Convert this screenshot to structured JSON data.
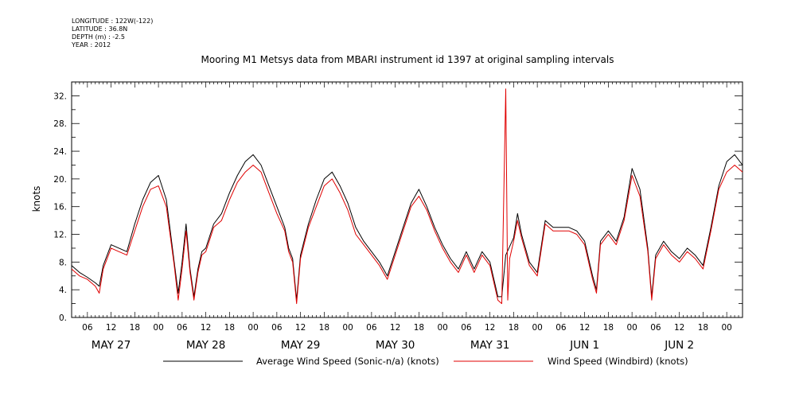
{
  "meta": {
    "longitude": "LONGITUDE : 122W(-122)",
    "latitude": "LATITUDE : 36.8N",
    "depth": "DEPTH (m) : -2.5",
    "year": "YEAR : 2012"
  },
  "colors": {
    "series1": "#000000",
    "series2": "#e00000"
  },
  "chart_data": {
    "type": "line",
    "title": "Mooring M1 Metsys data from MBARI instrument id 1397 at original sampling intervals",
    "ylabel": "knots",
    "xlabel": "",
    "ylim": [
      0,
      34
    ],
    "yticks": [
      0,
      4,
      8,
      12,
      16,
      20,
      24,
      28,
      32
    ],
    "ytick_labels": [
      "0.",
      "4.",
      "8.",
      "12.",
      "16.",
      "20.",
      "24.",
      "28.",
      "32."
    ],
    "x_unit": "hours since 2012-05-26 00:00",
    "xlim": [
      2,
      172
    ],
    "hour_ticks": [
      6,
      12,
      18,
      24,
      30,
      36,
      42,
      48,
      54,
      60,
      66,
      72,
      78,
      84,
      90,
      96,
      102,
      108,
      114,
      120,
      126,
      132,
      138,
      144,
      150,
      156,
      162,
      168
    ],
    "hour_tick_labels": [
      "06",
      "12",
      "18",
      "00",
      "06",
      "12",
      "18",
      "00",
      "06",
      "12",
      "18",
      "00",
      "06",
      "12",
      "18",
      "00",
      "06",
      "12",
      "18",
      "00",
      "06",
      "12",
      "18",
      "00",
      "06",
      "12",
      "18",
      "00"
    ],
    "day_labels": [
      {
        "x": 12,
        "label": "MAY 27"
      },
      {
        "x": 36,
        "label": "MAY 28"
      },
      {
        "x": 60,
        "label": "MAY 29"
      },
      {
        "x": 84,
        "label": "MAY 30"
      },
      {
        "x": 108,
        "label": "MAY 31"
      },
      {
        "x": 132,
        "label": "JUN  1"
      },
      {
        "x": 156,
        "label": "JUN  2"
      }
    ],
    "series": [
      {
        "name": "Average Wind Speed (Sonic-n/a) (knots)",
        "x": [
          2,
          4,
          6,
          8,
          9,
          10,
          12,
          14,
          16,
          18,
          20,
          22,
          24,
          26,
          28,
          29,
          30,
          31,
          32,
          33,
          34,
          35,
          36,
          38,
          40,
          42,
          44,
          46,
          48,
          50,
          52,
          54,
          56,
          57,
          58,
          59,
          60,
          62,
          64,
          66,
          68,
          70,
          72,
          74,
          76,
          78,
          80,
          82,
          84,
          86,
          88,
          90,
          92,
          94,
          96,
          98,
          100,
          102,
          104,
          106,
          108,
          110,
          111,
          112,
          114,
          115,
          116,
          118,
          120,
          122,
          124,
          126,
          128,
          130,
          132,
          134,
          135,
          136,
          138,
          140,
          142,
          144,
          146,
          148,
          149,
          150,
          152,
          154,
          156,
          158,
          160,
          162,
          164,
          166,
          168,
          170,
          172
        ],
        "y": [
          7.5,
          6.5,
          5.8,
          5.0,
          4.5,
          7.5,
          10.5,
          10.0,
          9.5,
          13.5,
          17.0,
          19.5,
          20.5,
          17.0,
          8.0,
          3.5,
          8.0,
          13.5,
          7.0,
          3.0,
          7.0,
          9.5,
          10.0,
          13.5,
          15.0,
          18.0,
          20.5,
          22.5,
          23.5,
          22.0,
          19.0,
          16.0,
          13.0,
          10.0,
          8.5,
          2.5,
          9.0,
          13.5,
          17.0,
          20.0,
          21.0,
          19.0,
          16.5,
          13.0,
          11.0,
          9.5,
          8.0,
          6.0,
          9.5,
          13.0,
          16.5,
          18.5,
          16.0,
          13.0,
          10.5,
          8.5,
          7.0,
          9.5,
          7.0,
          9.5,
          8.0,
          3.0,
          3.0,
          9.0,
          11.5,
          15.0,
          12.0,
          8.0,
          6.5,
          14.0,
          13.0,
          13.0,
          13.0,
          12.5,
          11.0,
          6.0,
          4.0,
          11.0,
          12.5,
          11.0,
          14.5,
          21.5,
          18.5,
          10.0,
          3.0,
          9.0,
          11.0,
          9.5,
          8.5,
          10.0,
          9.0,
          7.5,
          13.0,
          19.0,
          22.5,
          23.5,
          22.0
        ]
      },
      {
        "name": "Wind Speed (Windbird) (knots)",
        "x": [
          2,
          4,
          6,
          8,
          9,
          10,
          12,
          14,
          16,
          18,
          20,
          22,
          24,
          26,
          28,
          29,
          30,
          31,
          32,
          33,
          34,
          35,
          36,
          38,
          40,
          42,
          44,
          46,
          48,
          50,
          52,
          54,
          56,
          57,
          58,
          59,
          60,
          62,
          64,
          66,
          68,
          70,
          72,
          74,
          76,
          78,
          80,
          82,
          84,
          86,
          88,
          90,
          92,
          94,
          96,
          98,
          100,
          102,
          104,
          106,
          108,
          110,
          111,
          112,
          112.5,
          113,
          114,
          115,
          116,
          118,
          120,
          122,
          124,
          126,
          128,
          130,
          132,
          134,
          135,
          136,
          138,
          140,
          142,
          144,
          146,
          148,
          149,
          150,
          152,
          154,
          156,
          158,
          160,
          162,
          164,
          166,
          168,
          170,
          172
        ],
        "y": [
          7.0,
          6.0,
          5.5,
          4.5,
          3.5,
          7.0,
          10.0,
          9.5,
          9.0,
          12.5,
          16.0,
          18.5,
          19.0,
          16.0,
          7.5,
          2.5,
          7.0,
          12.5,
          6.5,
          2.5,
          6.5,
          9.0,
          9.5,
          13.0,
          14.0,
          17.0,
          19.5,
          21.0,
          22.0,
          21.0,
          18.0,
          15.0,
          12.5,
          9.5,
          8.0,
          2.0,
          8.5,
          13.0,
          16.0,
          19.0,
          20.0,
          18.0,
          15.5,
          12.0,
          10.5,
          9.0,
          7.5,
          5.5,
          9.0,
          12.5,
          16.0,
          17.5,
          15.5,
          12.5,
          10.0,
          8.0,
          6.5,
          9.0,
          6.5,
          9.0,
          7.5,
          2.5,
          2.0,
          33.0,
          2.5,
          8.5,
          11.0,
          14.0,
          11.5,
          7.5,
          6.0,
          13.5,
          12.5,
          12.5,
          12.5,
          12.0,
          10.5,
          5.5,
          3.5,
          10.5,
          12.0,
          10.5,
          14.0,
          20.5,
          17.5,
          9.5,
          2.5,
          8.5,
          10.5,
          9.0,
          8.0,
          9.5,
          8.5,
          7.0,
          12.5,
          18.5,
          21.0,
          22.0,
          21.0
        ]
      }
    ]
  }
}
